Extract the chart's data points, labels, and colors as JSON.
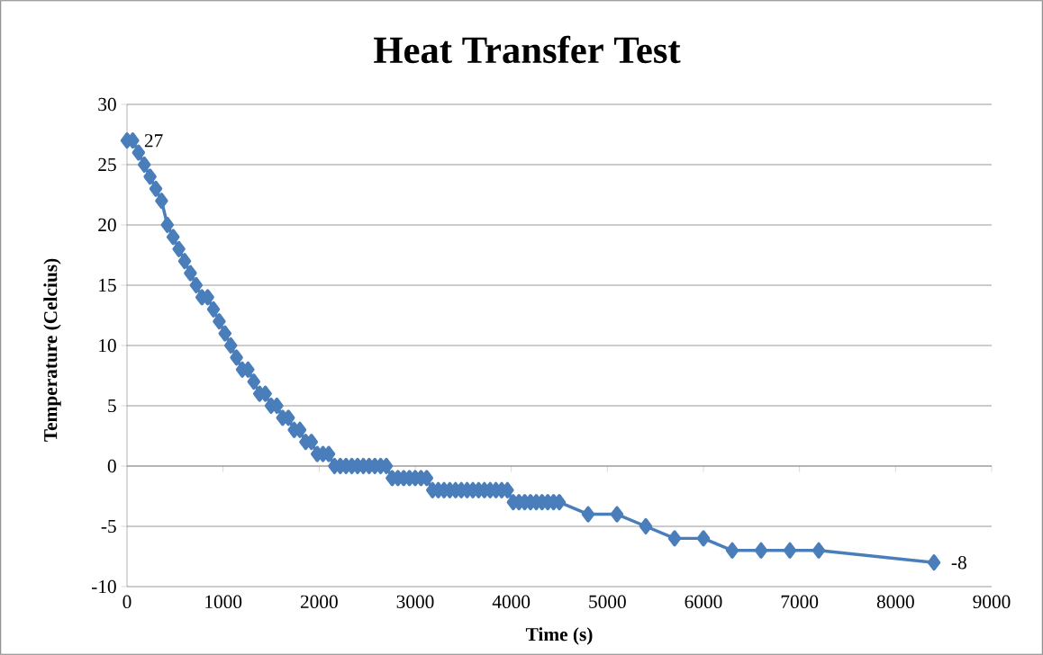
{
  "chart_data": {
    "type": "line",
    "title": "Heat Transfer Test",
    "xlabel": "Time (s)",
    "ylabel": "Temperature (Celcius)",
    "x": [
      0,
      60,
      120,
      180,
      240,
      300,
      360,
      420,
      480,
      540,
      600,
      660,
      720,
      780,
      840,
      900,
      960,
      1020,
      1080,
      1140,
      1200,
      1260,
      1320,
      1380,
      1440,
      1500,
      1560,
      1620,
      1680,
      1740,
      1800,
      1860,
      1920,
      1980,
      2040,
      2100,
      2160,
      2220,
      2280,
      2340,
      2400,
      2460,
      2520,
      2580,
      2640,
      2700,
      2760,
      2820,
      2880,
      2940,
      3000,
      3060,
      3120,
      3180,
      3240,
      3300,
      3360,
      3420,
      3480,
      3540,
      3600,
      3660,
      3720,
      3780,
      3840,
      3900,
      3960,
      4020,
      4080,
      4140,
      4200,
      4260,
      4320,
      4380,
      4440,
      4500,
      4800,
      5100,
      5400,
      5700,
      6000,
      6300,
      6600,
      6900,
      7200,
      8400
    ],
    "series": [
      {
        "color": "#4a7ebb",
        "values": [
          27,
          27,
          26,
          25,
          24,
          23,
          22,
          20,
          19,
          18,
          17,
          16,
          15,
          14,
          14,
          13,
          12,
          11,
          10,
          9,
          8,
          8,
          7,
          6,
          6,
          5,
          5,
          4,
          4,
          3,
          3,
          2,
          2,
          1,
          1,
          1,
          0,
          0,
          0,
          0,
          0,
          0,
          0,
          0,
          0,
          0,
          -1,
          -1,
          -1,
          -1,
          -1,
          -1,
          -1,
          -2,
          -2,
          -2,
          -2,
          -2,
          -2,
          -2,
          -2,
          -2,
          -2,
          -2,
          -2,
          -2,
          -2,
          -3,
          -3,
          -3,
          -3,
          -3,
          -3,
          -3,
          -3,
          -3,
          -4,
          -4,
          -5,
          -6,
          -6,
          -7,
          -7,
          -7,
          -7,
          -8
        ],
        "value_labels": [
          "27",
          null,
          null,
          null,
          null,
          null,
          null,
          null,
          null,
          null,
          null,
          null,
          null,
          null,
          null,
          null,
          null,
          null,
          null,
          null,
          null,
          null,
          null,
          null,
          null,
          null,
          null,
          null,
          null,
          null,
          null,
          null,
          null,
          null,
          null,
          null,
          null,
          null,
          null,
          null,
          null,
          null,
          null,
          null,
          null,
          null,
          null,
          null,
          null,
          null,
          null,
          null,
          null,
          null,
          null,
          null,
          null,
          null,
          null,
          null,
          null,
          null,
          null,
          null,
          null,
          null,
          null,
          null,
          null,
          null,
          null,
          null,
          null,
          null,
          null,
          null,
          null,
          null,
          null,
          null,
          null,
          null,
          null,
          null,
          null,
          "-8"
        ]
      }
    ],
    "xlim": [
      0,
      9000
    ],
    "xticks": [
      0,
      1000,
      2000,
      3000,
      4000,
      5000,
      6000,
      7000,
      8000,
      9000
    ],
    "ylim": [
      -10,
      30
    ],
    "yticks": [
      -10,
      -5,
      0,
      5,
      10,
      15,
      20,
      25,
      30
    ],
    "grid": "y",
    "marker": "diamond",
    "line_style": "solid",
    "legend": false
  }
}
